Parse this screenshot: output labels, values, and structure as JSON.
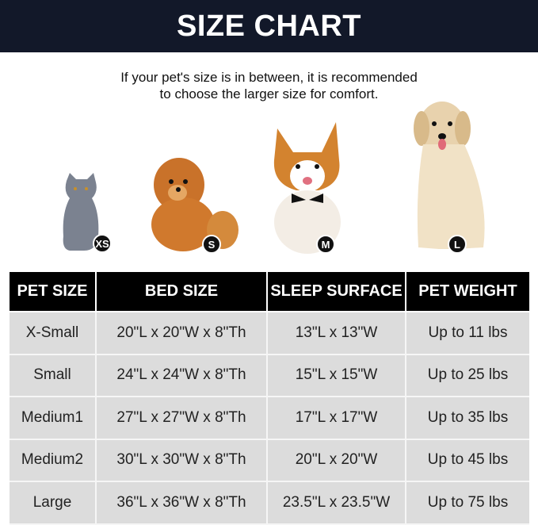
{
  "title": "SIZE CHART",
  "note": [
    "If your pet's size is in between, it is recommended",
    "to choose the larger size for comfort."
  ],
  "pets": [
    {
      "animal": "cat",
      "badge": "XS"
    },
    {
      "animal": "pomeranian",
      "badge": "S"
    },
    {
      "animal": "corgi",
      "badge": "M"
    },
    {
      "animal": "golden-retriever",
      "badge": "L"
    }
  ],
  "table": {
    "headers": [
      "PET SIZE",
      "BED SIZE",
      "SLEEP SURFACE",
      "PET WEIGHT"
    ],
    "rows": [
      [
        "X-Small",
        "20\"L x 20\"W x 8\"Th",
        "13\"L x 13\"W",
        "Up to 11 lbs"
      ],
      [
        "Small",
        "24\"L x 24\"W x 8\"Th",
        "15\"L x 15\"W",
        "Up to 25 lbs"
      ],
      [
        "Medium1",
        "27\"L x 27\"W x 8\"Th",
        "17\"L x 17\"W",
        "Up to 35 lbs"
      ],
      [
        "Medium2",
        "30\"L x 30\"W x 8\"Th",
        "20\"L x 20\"W",
        "Up to 45 lbs"
      ],
      [
        "Large",
        "36\"L x 36\"W x 8\"Th",
        "23.5\"L x 23.5\"W",
        "Up to 75 lbs"
      ]
    ]
  },
  "colors": {
    "banner": "#121829",
    "header": "#000000",
    "cell": "#dcdcdc"
  }
}
